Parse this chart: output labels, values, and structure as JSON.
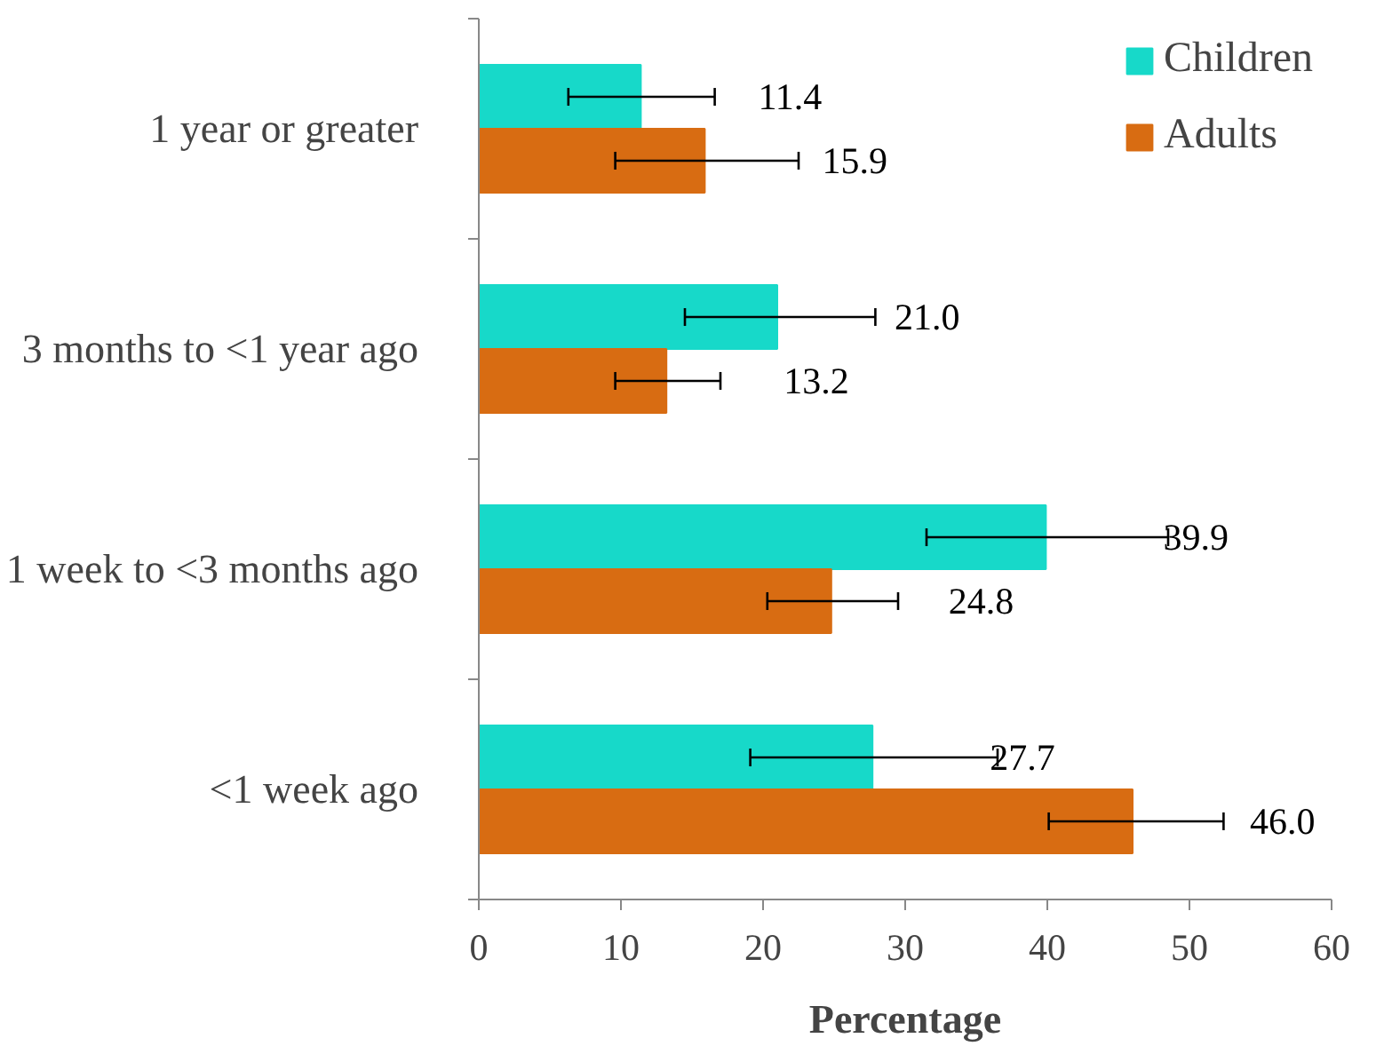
{
  "chart_data": {
    "type": "bar",
    "orientation": "horizontal",
    "xlabel": "Percentage",
    "categories": [
      "1 year or greater",
      "3 months to <1 year ago",
      "1 week to <3 months ago",
      "<1 week ago"
    ],
    "series": [
      {
        "name": "Children",
        "color": "#17d9c9",
        "values": [
          11.4,
          21.0,
          39.9,
          27.7
        ],
        "errors": [
          [
            6.3,
            16.6
          ],
          [
            14.5,
            27.9
          ],
          [
            31.5,
            48.5
          ],
          [
            19.1,
            36.5
          ]
        ],
        "value_labels": [
          "11.4",
          "21.0",
          "39.9",
          "27.7"
        ]
      },
      {
        "name": "Adults",
        "color": "#d86c12",
        "values": [
          15.9,
          13.2,
          24.8,
          46.0
        ],
        "errors": [
          [
            9.6,
            22.5
          ],
          [
            9.6,
            17.0
          ],
          [
            20.3,
            29.5
          ],
          [
            40.1,
            52.4
          ]
        ],
        "value_labels": [
          "15.9",
          "13.2",
          "24.8",
          "46.0"
        ]
      }
    ],
    "xlim": [
      0,
      60
    ],
    "xticks": [
      0,
      10,
      20,
      30,
      40,
      50,
      60
    ],
    "grid": false,
    "legend": "top right"
  }
}
